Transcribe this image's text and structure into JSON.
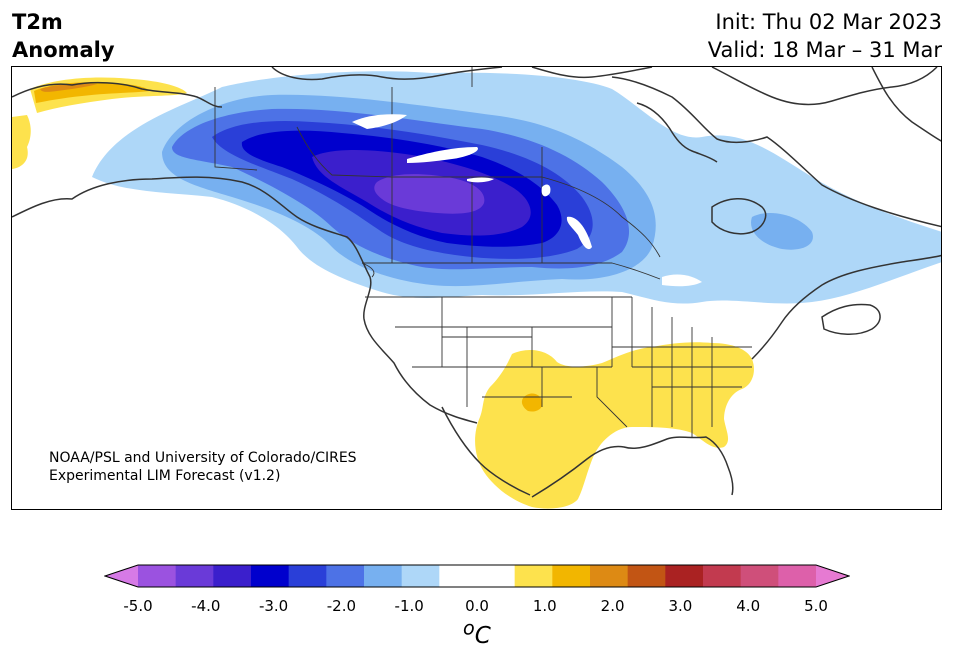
{
  "header": {
    "title_line1": "T2m",
    "title_line2": "Anomaly",
    "init_line": "Init: Thu 02 Mar 2023",
    "valid_line": "Valid: 18 Mar – 31 Mar"
  },
  "credit": {
    "line1": "NOAA/PSL and University of Colorado/CIRES",
    "line2": "Experimental LIM Forecast (v1.2)"
  },
  "map": {
    "variable": "2-m temperature anomaly",
    "region": "North America",
    "cold_anomaly_center": "central Canada (Saskatchewan / Manitoba)",
    "warm_anomaly_region": "southern Plains and southeastern United States"
  },
  "colorbar": {
    "unit_sup": "o",
    "unit": "C",
    "tick_labels": [
      "-5.0",
      "-4.0",
      "-3.0",
      "-2.0",
      "-1.0",
      "0.0",
      "1.0",
      "2.0",
      "3.0",
      "4.0",
      "5.0"
    ],
    "extend": "both",
    "colors": [
      "#d67ae6",
      "#9b52e0",
      "#6a3ad8",
      "#3b1fcc",
      "#0000cd",
      "#2a3fd8",
      "#4d72e6",
      "#77b0f0",
      "#aed7f8",
      "#ffffff",
      "#ffffff",
      "#fde24d",
      "#f2b600",
      "#dd8a14",
      "#c25514",
      "#aa2222",
      "#c23a4f",
      "#cf4f7a",
      "#dd60aa",
      "#e67ad2"
    ]
  }
}
